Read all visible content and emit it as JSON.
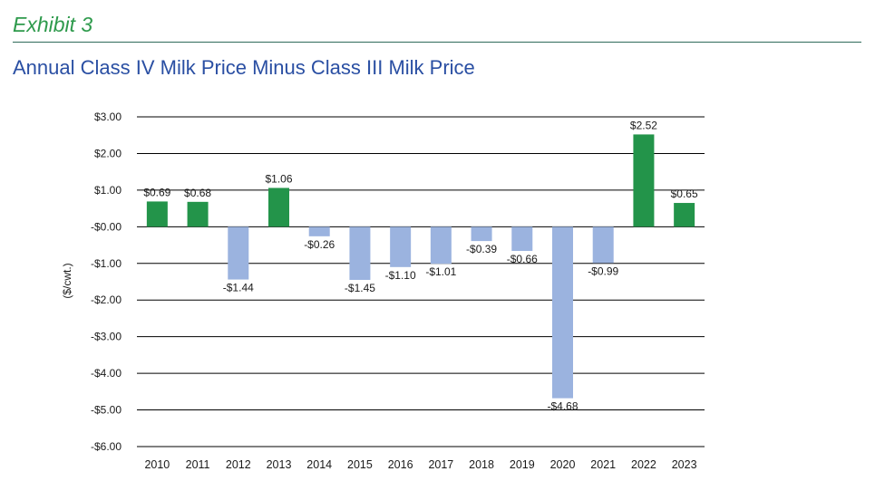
{
  "header": {
    "exhibit": "Exhibit 3",
    "title": "Annual Class IV Milk Price Minus Class III Milk Price"
  },
  "colors": {
    "positive": "#23944a",
    "negative": "#9bb3df",
    "exhibit": "#2e9a4c",
    "title": "#2a4fa3"
  },
  "chart_data": {
    "type": "bar",
    "title": "Annual Class IV Milk Price Minus Class III Milk Price",
    "ylabel": "($/cwt.)",
    "xlabel": "",
    "ylim": [
      -6,
      3
    ],
    "grid": "horizontal",
    "categories": [
      "2010",
      "2011",
      "2012",
      "2013",
      "2014",
      "2015",
      "2016",
      "2017",
      "2018",
      "2019",
      "2020",
      "2021",
      "2022",
      "2023"
    ],
    "values": [
      0.69,
      0.68,
      -1.44,
      1.06,
      -0.26,
      -1.45,
      -1.1,
      -1.01,
      -0.39,
      -0.66,
      -4.68,
      -0.99,
      2.52,
      0.65
    ],
    "data_labels": [
      "$0.69",
      "$0.68",
      "-$1.44",
      "$1.06",
      "-$0.26",
      "-$1.45",
      "-$1.10",
      "-$1.01",
      "-$0.39",
      "-$0.66",
      "-$4.68",
      "-$0.99",
      "$2.52",
      "$0.65"
    ],
    "y_ticks": [
      3,
      2,
      1,
      0,
      -1,
      -2,
      -3,
      -4,
      -5,
      -6
    ],
    "y_tick_labels": [
      "$3.00",
      "$2.00",
      "$1.00",
      "-$0.00",
      "-$1.00",
      "-$2.00",
      "-$3.00",
      "-$4.00",
      "-$5.00",
      "-$6.00"
    ]
  }
}
